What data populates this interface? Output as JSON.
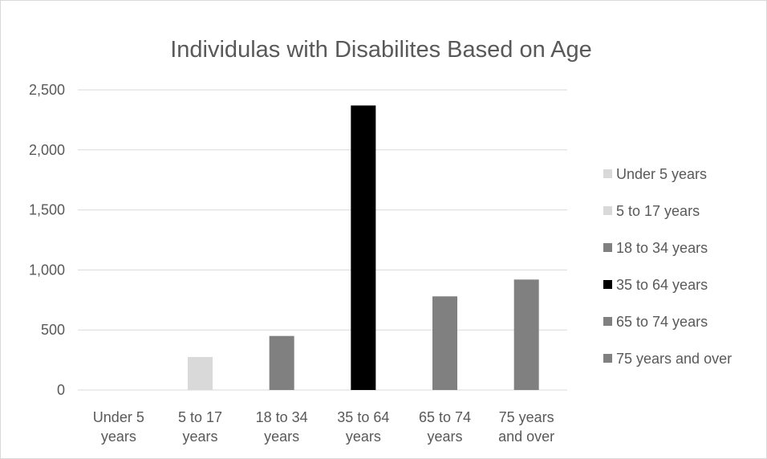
{
  "chart_data": {
    "type": "bar",
    "title": "Individulas with Disabilites Based on Age",
    "xlabel": "",
    "ylabel": "",
    "ylim": [
      0,
      2500
    ],
    "yticks": [
      0,
      500,
      1000,
      1500,
      2000,
      2500
    ],
    "ytick_labels": [
      "0",
      "500",
      "1,000",
      "1,500",
      "2,000",
      "2,500"
    ],
    "grid": true,
    "legend_position": "right",
    "categories": [
      [
        "Under 5",
        "years"
      ],
      [
        "5 to 17",
        "years"
      ],
      [
        "18 to 34",
        "years"
      ],
      [
        "35 to 64",
        "years"
      ],
      [
        "65 to 74",
        "years"
      ],
      [
        "75 years",
        "and over"
      ]
    ],
    "values": [
      0,
      275,
      450,
      2370,
      780,
      920
    ],
    "colors": [
      "#d9d9d9",
      "#d9d9d9",
      "#808080",
      "#000000",
      "#808080",
      "#808080"
    ],
    "legend": [
      {
        "label": "Under 5 years",
        "color": "#d9d9d9"
      },
      {
        "label": "5 to 17 years",
        "color": "#d9d9d9"
      },
      {
        "label": "18 to 34 years",
        "color": "#808080"
      },
      {
        "label": "35 to 64 years",
        "color": "#000000"
      },
      {
        "label": "65 to 74 years",
        "color": "#808080"
      },
      {
        "label": "75 years and over",
        "color": "#808080"
      }
    ]
  }
}
